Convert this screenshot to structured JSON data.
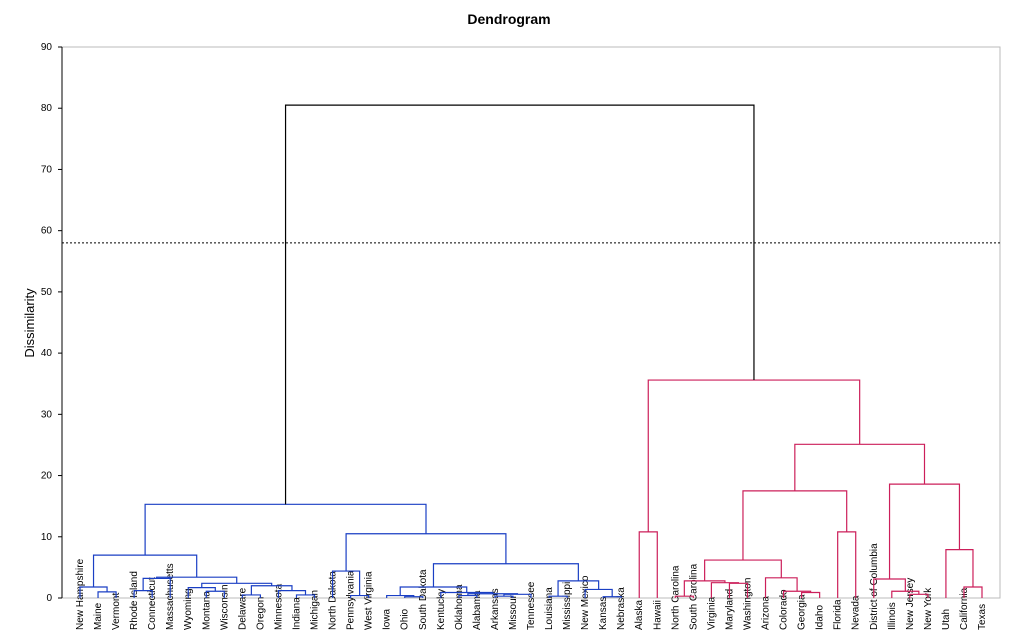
{
  "chart_data": {
    "type": "dendrogram",
    "title": "Dendrogram",
    "y_label": "Dissimilarity",
    "ylim": [
      0,
      90
    ],
    "yticks": [
      0,
      10,
      20,
      30,
      40,
      50,
      60,
      70,
      80,
      90
    ],
    "threshold": 58,
    "colors": [
      "#1a3fc4",
      "#cc1f5a"
    ],
    "root_color": "#000000",
    "labels": [
      "New Hampshire",
      "Maine",
      "Vermont",
      "Rhode Island",
      "Connecticut",
      "Massachusetts",
      "Wyoming",
      "Montana",
      "Wisconsin",
      "Delaware",
      "Oregon",
      "Minnesota",
      "Indiana",
      "Michigan",
      "North Dakota",
      "Pennsylvania",
      "West Virginia",
      "Iowa",
      "Ohio",
      "South Dakota",
      "Kentucky",
      "Oklahoma",
      "Alabama",
      "Arkansas",
      "Missouri",
      "Tennessee",
      "Louisiana",
      "Mississippi",
      "New Mexico",
      "Kansas",
      "Nebraska",
      "Alaska",
      "Hawaii",
      "North Carolina",
      "South Carolina",
      "Virginia",
      "Maryland",
      "Washington",
      "Arizona",
      "Colorado",
      "Georgia",
      "Idaho",
      "Florida",
      "Nevada",
      "District of Columbia",
      "Illinois",
      "New Jersey",
      "New York",
      "Utah",
      "California",
      "Texas"
    ],
    "merges": [
      [
        1,
        2,
        1.0
      ],
      [
        0,
        51,
        1.8
      ],
      [
        3,
        4,
        1.2
      ],
      [
        53,
        5,
        3.2
      ],
      [
        7,
        8,
        1.1
      ],
      [
        6,
        55,
        1.7
      ],
      [
        9,
        10,
        0.5
      ],
      [
        12,
        13,
        0.5
      ],
      [
        11,
        58,
        1.2
      ],
      [
        57,
        59,
        2.0
      ],
      [
        56,
        60,
        2.4
      ],
      [
        54,
        61,
        3.4
      ],
      [
        52,
        62,
        7.0
      ],
      [
        15,
        16,
        0.4
      ],
      [
        14,
        64,
        4.4
      ],
      [
        18,
        19,
        0.2
      ],
      [
        17,
        66,
        0.4
      ],
      [
        21,
        22,
        0.4
      ],
      [
        23,
        24,
        0.3
      ],
      [
        69,
        25,
        0.6
      ],
      [
        68,
        70,
        0.7
      ],
      [
        20,
        71,
        0.9
      ],
      [
        67,
        72,
        1.8
      ],
      [
        26,
        27,
        0.3
      ],
      [
        29,
        30,
        0.2
      ],
      [
        28,
        75,
        1.4
      ],
      [
        74,
        76,
        2.8
      ],
      [
        73,
        77,
        5.6
      ],
      [
        65,
        78,
        10.5
      ],
      [
        63,
        79,
        15.3
      ],
      [
        31,
        32,
        10.8
      ],
      [
        33,
        34,
        0.3
      ],
      [
        36,
        37,
        2.4
      ],
      [
        35,
        83,
        2.5
      ],
      [
        82,
        84,
        2.8
      ],
      [
        40,
        41,
        0.9
      ],
      [
        39,
        86,
        1.1
      ],
      [
        38,
        87,
        3.3
      ],
      [
        85,
        88,
        6.2
      ],
      [
        42,
        43,
        10.8
      ],
      [
        89,
        90,
        17.5
      ],
      [
        46,
        47,
        0.6
      ],
      [
        45,
        92,
        1.1
      ],
      [
        44,
        93,
        3.1
      ],
      [
        49,
        50,
        1.8
      ],
      [
        48,
        95,
        7.9
      ],
      [
        94,
        96,
        18.6
      ],
      [
        91,
        97,
        25.1
      ],
      [
        81,
        98,
        35.6
      ],
      [
        80,
        99,
        80.5
      ]
    ]
  }
}
